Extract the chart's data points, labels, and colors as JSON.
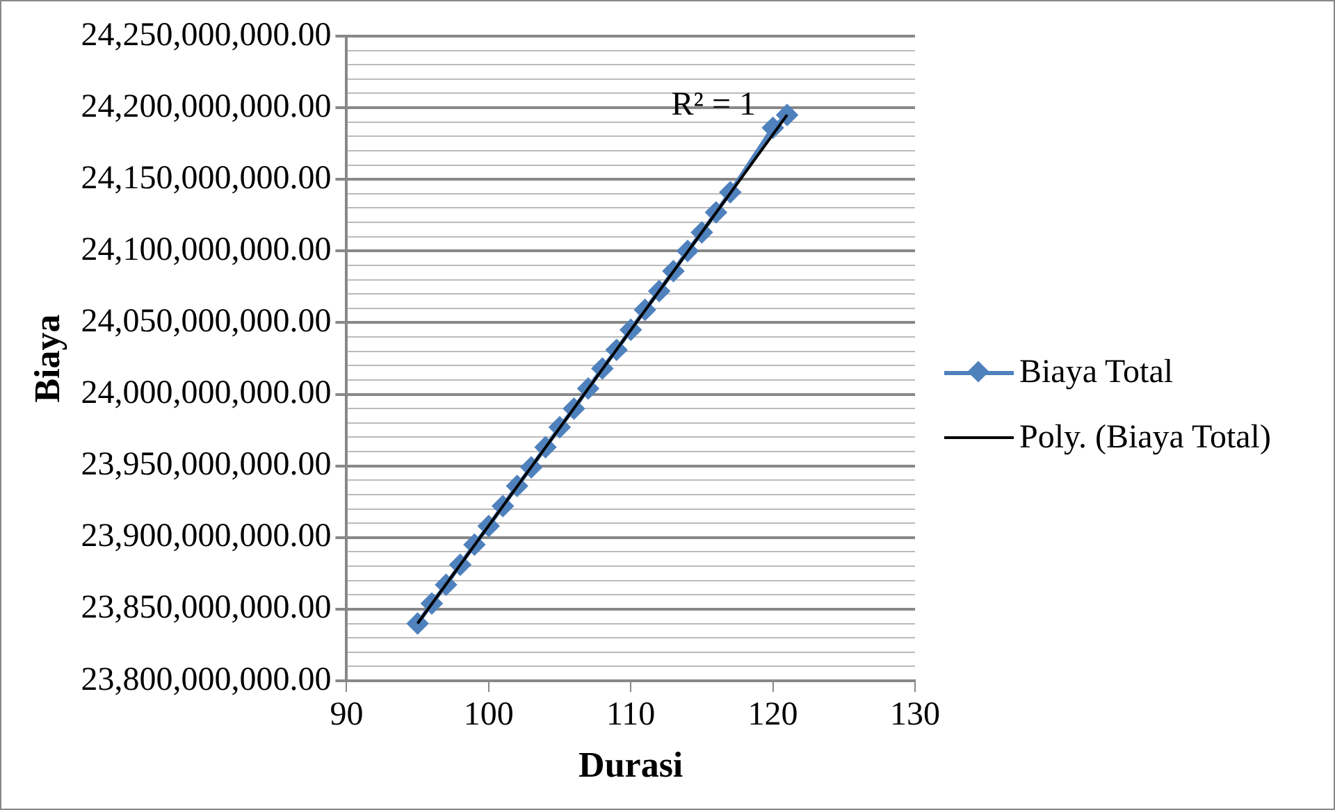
{
  "chart_data": {
    "type": "line",
    "xlabel": "Durasi",
    "ylabel": "Biaya",
    "xlim": [
      90,
      130
    ],
    "xticks": [
      90,
      100,
      110,
      120,
      130
    ],
    "ylim": [
      23800000000,
      24250000000
    ],
    "yticks": [
      {
        "value": 23800000000,
        "label": "23,800,000,000.00"
      },
      {
        "value": 23810000000,
        "label": null
      },
      {
        "value": 23820000000,
        "label": null
      },
      {
        "value": 23830000000,
        "label": null
      },
      {
        "value": 23840000000,
        "label": null
      },
      {
        "value": 23850000000,
        "label": "23,850,000,000.00"
      },
      {
        "value": 23860000000,
        "label": null
      },
      {
        "value": 23870000000,
        "label": null
      },
      {
        "value": 23880000000,
        "label": null
      },
      {
        "value": 23890000000,
        "label": null
      },
      {
        "value": 23900000000,
        "label": "23,900,000,000.00"
      },
      {
        "value": 23910000000,
        "label": null
      },
      {
        "value": 23920000000,
        "label": null
      },
      {
        "value": 23930000000,
        "label": null
      },
      {
        "value": 23940000000,
        "label": null
      },
      {
        "value": 23950000000,
        "label": "23,950,000,000.00"
      },
      {
        "value": 23960000000,
        "label": null
      },
      {
        "value": 23970000000,
        "label": null
      },
      {
        "value": 23980000000,
        "label": null
      },
      {
        "value": 23990000000,
        "label": null
      },
      {
        "value": 24000000000,
        "label": "24,000,000,000.00"
      },
      {
        "value": 24010000000,
        "label": null
      },
      {
        "value": 24020000000,
        "label": null
      },
      {
        "value": 24030000000,
        "label": null
      },
      {
        "value": 24040000000,
        "label": null
      },
      {
        "value": 24050000000,
        "label": "24,050,000,000.00"
      },
      {
        "value": 24060000000,
        "label": null
      },
      {
        "value": 24070000000,
        "label": null
      },
      {
        "value": 24080000000,
        "label": null
      },
      {
        "value": 24090000000,
        "label": null
      },
      {
        "value": 24100000000,
        "label": "24,100,000,000.00"
      },
      {
        "value": 24110000000,
        "label": null
      },
      {
        "value": 24120000000,
        "label": null
      },
      {
        "value": 24130000000,
        "label": null
      },
      {
        "value": 24140000000,
        "label": null
      },
      {
        "value": 24150000000,
        "label": "24,150,000,000.00"
      },
      {
        "value": 24160000000,
        "label": null
      },
      {
        "value": 24170000000,
        "label": null
      },
      {
        "value": 24180000000,
        "label": null
      },
      {
        "value": 24190000000,
        "label": null
      },
      {
        "value": 24200000000,
        "label": "24,200,000,000.00"
      },
      {
        "value": 24210000000,
        "label": null
      },
      {
        "value": 24220000000,
        "label": null
      },
      {
        "value": 24230000000,
        "label": null
      },
      {
        "value": 24240000000,
        "label": null
      },
      {
        "value": 24250000000,
        "label": "24,250,000,000.00"
      }
    ],
    "grid": "y",
    "legend": "right",
    "marker": "diamond",
    "series": [
      {
        "name": "Biaya Total",
        "color": "#4f81bd",
        "x": [
          95,
          96,
          97,
          98,
          99,
          100,
          101,
          102,
          103,
          104,
          105,
          106,
          107,
          108,
          109,
          110,
          111,
          112,
          113,
          114,
          115,
          116,
          117,
          120,
          121
        ],
        "values": [
          23840000000,
          23854000000,
          23867000000,
          23881000000,
          23895000000,
          23908000000,
          23922000000,
          23936000000,
          23949000000,
          23963000000,
          23977000000,
          23990000000,
          24004000000,
          24018000000,
          24031000000,
          24045000000,
          24059000000,
          24072000000,
          24086000000,
          24100000000,
          24113000000,
          24127000000,
          24141000000,
          24186000000,
          24195000000
        ]
      },
      {
        "name": "Poly. (Biaya Total)",
        "type": "line",
        "color": "#000000",
        "marker": "none",
        "x": [
          95,
          121
        ],
        "values": [
          23840000000,
          24195000000
        ]
      }
    ],
    "annotations": [
      "R² = 1"
    ]
  }
}
